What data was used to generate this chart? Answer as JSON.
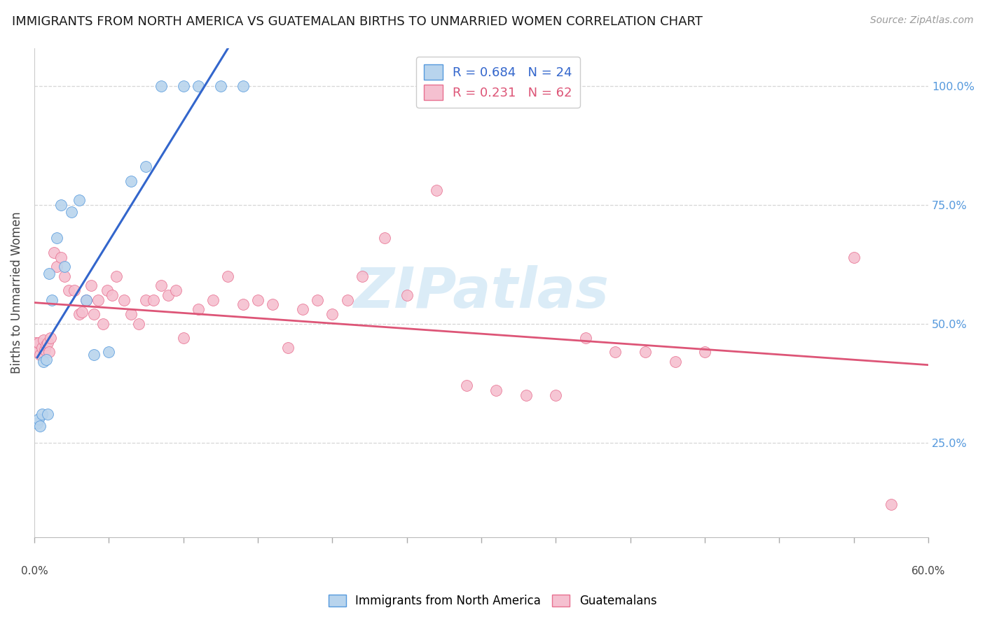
{
  "title": "IMMIGRANTS FROM NORTH AMERICA VS GUATEMALAN BIRTHS TO UNMARRIED WOMEN CORRELATION CHART",
  "source": "Source: ZipAtlas.com",
  "ylabel": "Births to Unmarried Women",
  "legend_blue_label": "Immigrants from North America",
  "legend_pink_label": "Guatemalans",
  "blue_R": 0.684,
  "blue_N": 24,
  "pink_R": 0.231,
  "pink_N": 62,
  "blue_fill_color": "#b8d4ed",
  "pink_fill_color": "#f5c0d0",
  "blue_edge_color": "#5599dd",
  "pink_edge_color": "#e87090",
  "blue_line_color": "#3366cc",
  "pink_line_color": "#dd5577",
  "watermark_color": "#cce5f5",
  "right_tick_color": "#5599dd",
  "blue_scatter_x": [
    0.2,
    0.3,
    0.4,
    0.5,
    0.6,
    0.8,
    0.9,
    1.0,
    1.2,
    1.5,
    1.8,
    2.0,
    2.5,
    3.0,
    3.5,
    4.0,
    5.0,
    6.5,
    7.5,
    8.5,
    10.0,
    11.0,
    12.5,
    14.0
  ],
  "blue_scatter_y": [
    29.0,
    30.0,
    28.5,
    31.0,
    42.0,
    42.5,
    31.0,
    60.5,
    55.0,
    68.0,
    75.0,
    62.0,
    73.5,
    76.0,
    55.0,
    43.5,
    44.0,
    80.0,
    83.0,
    100.0,
    100.0,
    100.0,
    100.0,
    100.0
  ],
  "pink_scatter_x": [
    0.1,
    0.2,
    0.3,
    0.4,
    0.5,
    0.6,
    0.7,
    0.8,
    0.9,
    1.0,
    1.1,
    1.3,
    1.5,
    1.8,
    2.0,
    2.3,
    2.7,
    3.0,
    3.2,
    3.5,
    3.8,
    4.0,
    4.3,
    4.6,
    4.9,
    5.2,
    5.5,
    6.0,
    6.5,
    7.0,
    7.5,
    8.0,
    8.5,
    9.0,
    9.5,
    10.0,
    11.0,
    12.0,
    13.0,
    14.0,
    15.0,
    16.0,
    17.0,
    18.0,
    19.0,
    20.0,
    21.0,
    22.0,
    23.5,
    25.0,
    27.0,
    29.0,
    31.0,
    33.0,
    35.0,
    37.0,
    39.0,
    41.0,
    43.0,
    45.0,
    55.0,
    57.5
  ],
  "pink_scatter_y": [
    46.0,
    44.0,
    46.0,
    43.5,
    45.0,
    46.5,
    44.5,
    45.5,
    46.0,
    44.0,
    47.0,
    65.0,
    62.0,
    64.0,
    60.0,
    57.0,
    57.0,
    52.0,
    52.5,
    55.0,
    58.0,
    52.0,
    55.0,
    50.0,
    57.0,
    56.0,
    60.0,
    55.0,
    52.0,
    50.0,
    55.0,
    55.0,
    58.0,
    56.0,
    57.0,
    47.0,
    53.0,
    55.0,
    60.0,
    54.0,
    55.0,
    54.0,
    45.0,
    53.0,
    55.0,
    52.0,
    55.0,
    60.0,
    68.0,
    56.0,
    78.0,
    37.0,
    36.0,
    35.0,
    35.0,
    47.0,
    44.0,
    44.0,
    42.0,
    44.0,
    64.0,
    12.0
  ],
  "xlim": [
    0,
    60
  ],
  "ylim": [
    5,
    108
  ],
  "y_ticks": [
    25,
    50,
    75,
    100
  ],
  "legend_fontsize": 13,
  "title_fontsize": 13
}
